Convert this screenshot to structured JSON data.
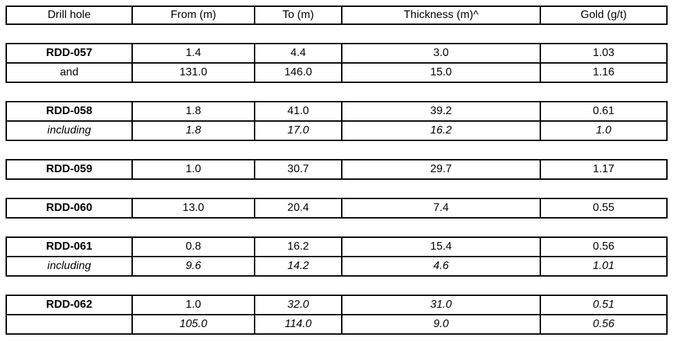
{
  "page": {
    "background": "#ffffff",
    "text_color": "#000000",
    "border_color": "#000000"
  },
  "table": {
    "headers": [
      "Drill hole",
      "From (m)",
      "To (m)",
      "Thickness (m)^",
      "Gold (g/t)"
    ],
    "column_names": [
      "drill-hole",
      "from",
      "to",
      "thickness",
      "gold"
    ],
    "blocks": [
      {
        "rows": [
          {
            "cells": [
              "RDD-057",
              "1.4",
              "4.4",
              "3.0",
              "1.03"
            ],
            "cell_styles": [
              "bold",
              "normal",
              "normal",
              "normal",
              "normal"
            ]
          },
          {
            "cells": [
              "and",
              "131.0",
              "146.0",
              "15.0",
              "1.16"
            ],
            "cell_styles": [
              "normal",
              "normal",
              "normal",
              "normal",
              "normal"
            ]
          }
        ]
      },
      {
        "rows": [
          {
            "cells": [
              "RDD-058",
              "1.8",
              "41.0",
              "39.2",
              "0.61"
            ],
            "cell_styles": [
              "bold",
              "normal",
              "normal",
              "normal",
              "normal"
            ]
          },
          {
            "cells": [
              "including",
              "1.8",
              "17.0",
              "16.2",
              "1.0"
            ],
            "cell_styles": [
              "italic",
              "italic",
              "italic",
              "italic",
              "italic"
            ]
          }
        ]
      },
      {
        "rows": [
          {
            "cells": [
              "RDD-059",
              "1.0",
              "30.7",
              "29.7",
              "1.17"
            ],
            "cell_styles": [
              "bold",
              "normal",
              "normal",
              "normal",
              "normal"
            ]
          }
        ]
      },
      {
        "rows": [
          {
            "cells": [
              "RDD-060",
              "13.0",
              "20.4",
              "7.4",
              "0.55"
            ],
            "cell_styles": [
              "bold",
              "normal",
              "normal",
              "normal",
              "normal"
            ]
          }
        ]
      },
      {
        "rows": [
          {
            "cells": [
              "RDD-061",
              "0.8",
              "16.2",
              "15.4",
              "0.56"
            ],
            "cell_styles": [
              "bold",
              "normal",
              "normal",
              "normal",
              "normal"
            ]
          },
          {
            "cells": [
              "including",
              "9.6",
              "14.2",
              "4.6",
              "1.01"
            ],
            "cell_styles": [
              "italic",
              "italic",
              "italic",
              "italic",
              "italic"
            ]
          }
        ]
      },
      {
        "rows": [
          {
            "cells": [
              "RDD-062",
              "1.0",
              "32.0",
              "31.0",
              "0.51"
            ],
            "cell_styles": [
              "bold",
              "normal",
              "italic",
              "italic",
              "italic"
            ]
          },
          {
            "cells": [
              "",
              "105.0",
              "114.0",
              "9.0",
              "0.56"
            ],
            "cell_styles": [
              "normal",
              "italic",
              "italic",
              "italic",
              "italic"
            ]
          }
        ]
      }
    ]
  }
}
